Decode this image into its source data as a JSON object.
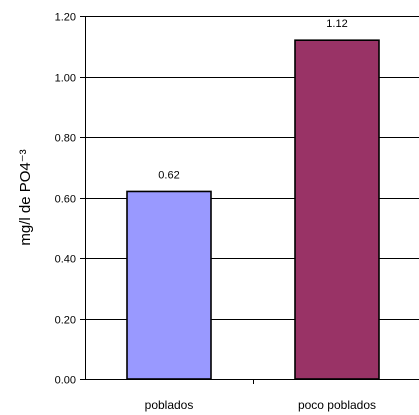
{
  "chart_data": {
    "type": "bar",
    "title": "",
    "xlabel": "",
    "ylabel": "mg/l de PO4⁻³",
    "categories": [
      "poblados",
      "poco poblados"
    ],
    "values": [
      0.62,
      1.12
    ],
    "data_labels": [
      "0.62",
      "1.12"
    ],
    "bar_colors": [
      "#9999ff",
      "#993366"
    ],
    "ylim": [
      0,
      1.2
    ],
    "yticks": [
      0,
      0.2,
      0.4,
      0.6,
      0.8,
      1.0,
      1.2
    ],
    "ytick_labels": [
      "0.00",
      "0.20",
      "0.40",
      "0.60",
      "0.80",
      "1.00",
      "1.20"
    ],
    "grid": true,
    "legend": "none"
  }
}
